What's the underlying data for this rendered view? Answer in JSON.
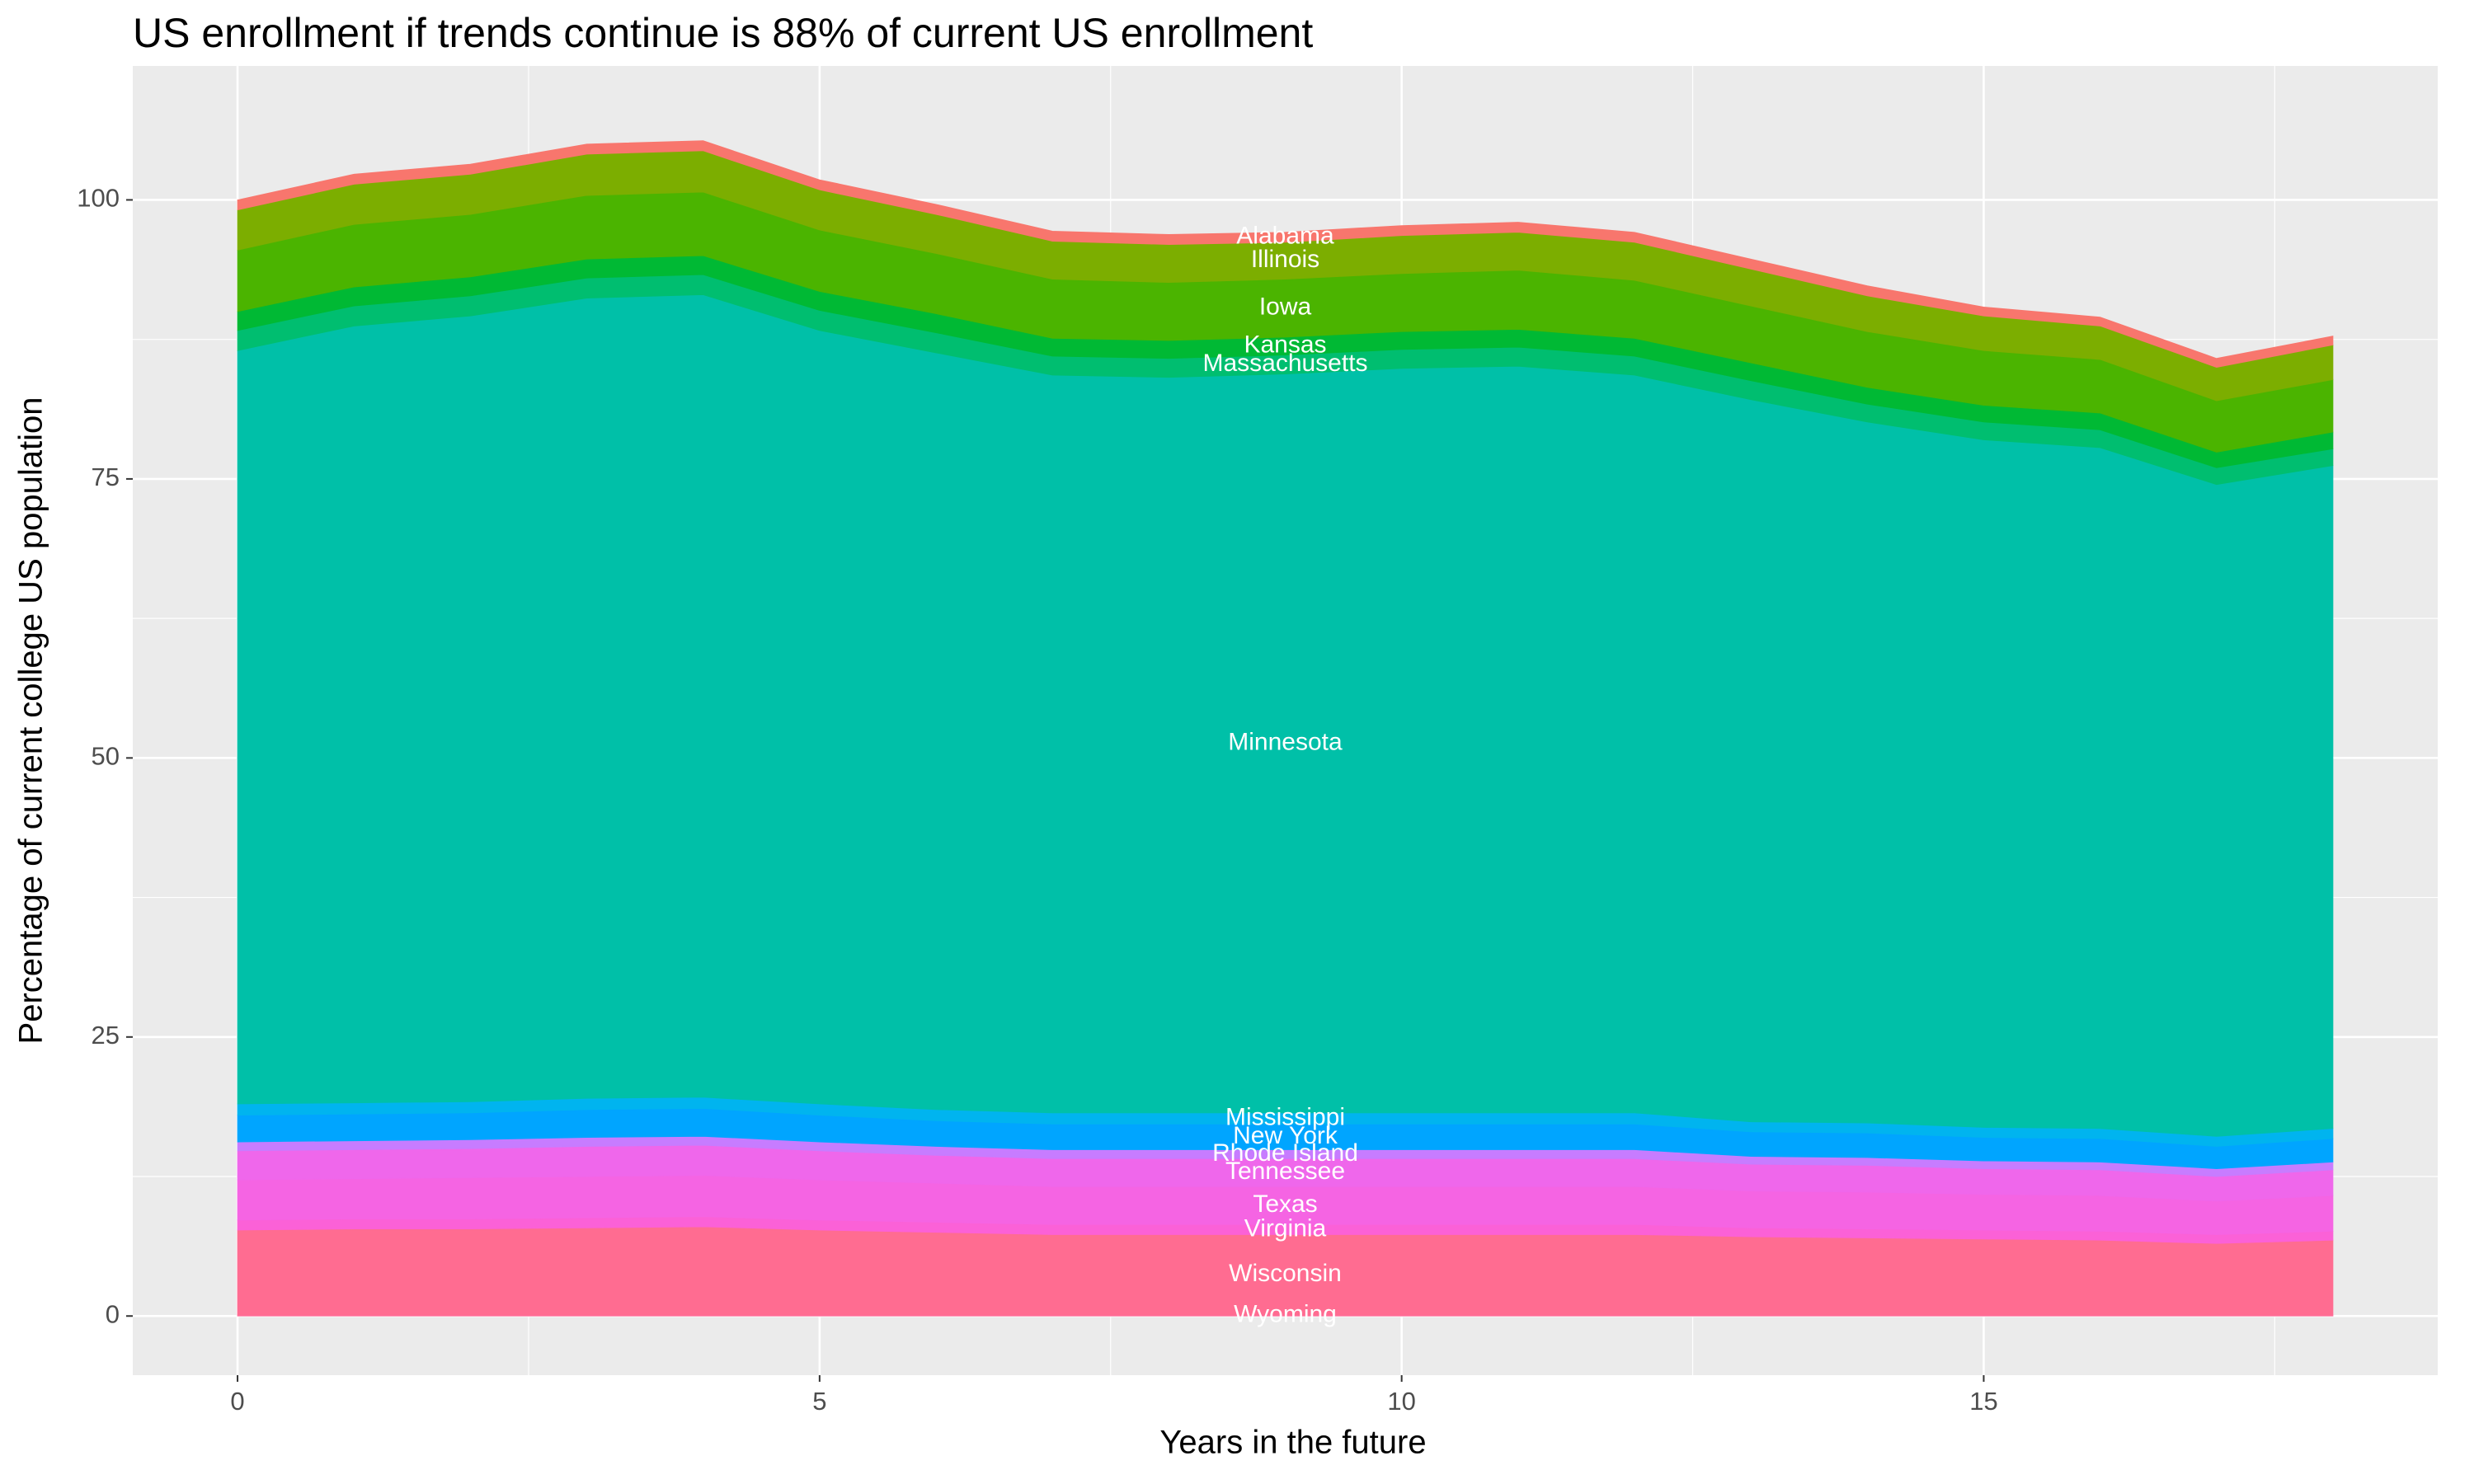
{
  "chart_data": {
    "type": "area",
    "stacked": true,
    "title": "US enrollment if trends continue is 88% of current US enrollment",
    "x_label": "Years in the future",
    "y_label": "Percentage of current college US population",
    "x": [
      0,
      1,
      2,
      3,
      4,
      5,
      6,
      7,
      8,
      9,
      10,
      11,
      12,
      13,
      14,
      15,
      16,
      17,
      18
    ],
    "xlim": [
      -0.9,
      18.9
    ],
    "xticks": [
      0,
      5,
      10,
      15
    ],
    "ylim": [
      -5.3,
      112
    ],
    "yticks": [
      0,
      25,
      50,
      75,
      100
    ],
    "grid": true,
    "label_at_index": 9,
    "series": [
      {
        "name": "Alabama",
        "color": "#F8766D",
        "values": [
          0.9,
          0.9,
          0.9,
          0.9,
          0.9,
          0.9,
          0.9,
          0.9,
          0.9,
          0.9,
          0.9,
          0.9,
          0.9,
          0.9,
          0.9,
          0.8,
          0.8,
          0.8,
          0.8
        ]
      },
      {
        "name": "Illinois",
        "color": "#7CAE00",
        "values": [
          3.6,
          3.6,
          3.6,
          3.7,
          3.7,
          3.6,
          3.5,
          3.4,
          3.4,
          3.3,
          3.4,
          3.4,
          3.4,
          3.3,
          3.2,
          3.1,
          3.0,
          3.0,
          3.1
        ]
      },
      {
        "name": "Iowa",
        "color": "#4BB400",
        "values": [
          5.5,
          5.6,
          5.6,
          5.7,
          5.7,
          5.5,
          5.4,
          5.3,
          5.2,
          5.2,
          5.2,
          5.3,
          5.2,
          5.1,
          5.0,
          4.9,
          4.8,
          4.6,
          4.7
        ]
      },
      {
        "name": "Kansas",
        "color": "#00B934",
        "values": [
          1.7,
          1.7,
          1.7,
          1.7,
          1.7,
          1.7,
          1.7,
          1.6,
          1.6,
          1.6,
          1.6,
          1.6,
          1.6,
          1.6,
          1.5,
          1.5,
          1.5,
          1.4,
          1.5
        ]
      },
      {
        "name": "Massachusetts",
        "color": "#00BE70",
        "values": [
          1.8,
          1.8,
          1.8,
          1.8,
          1.8,
          1.8,
          1.8,
          1.7,
          1.7,
          1.7,
          1.7,
          1.7,
          1.7,
          1.7,
          1.6,
          1.6,
          1.6,
          1.5,
          1.5
        ]
      },
      {
        "name": "Minnesota",
        "color": "#00C0A8",
        "values": [
          67.5,
          69.6,
          70.4,
          71.7,
          71.9,
          69.3,
          67.8,
          66.1,
          65.9,
          66.2,
          66.7,
          66.9,
          66.1,
          64.7,
          62.8,
          61.6,
          61.0,
          58.4,
          59.4
        ]
      },
      {
        "name": "Mississippi",
        "color": "#00B4EF",
        "values": [
          1.0,
          1.0,
          1.0,
          1.0,
          1.0,
          1.0,
          1.0,
          1.0,
          1.0,
          1.0,
          1.0,
          1.0,
          1.0,
          0.9,
          0.9,
          0.9,
          0.9,
          0.9,
          0.9
        ]
      },
      {
        "name": "New York",
        "color": "#00A5FF",
        "values": [
          2.4,
          2.4,
          2.4,
          2.5,
          2.5,
          2.4,
          2.3,
          2.3,
          2.3,
          2.3,
          2.3,
          2.3,
          2.3,
          2.2,
          2.2,
          2.1,
          2.1,
          2.0,
          2.1
        ]
      },
      {
        "name": "Rhode Island",
        "color": "#C77CFF",
        "values": [
          0.8,
          0.8,
          0.8,
          0.8,
          0.8,
          0.8,
          0.8,
          0.8,
          0.8,
          0.8,
          0.8,
          0.8,
          0.8,
          0.7,
          0.7,
          0.7,
          0.7,
          0.7,
          0.7
        ]
      },
      {
        "name": "Tennessee",
        "color": "#EF67EB",
        "values": [
          2.6,
          2.6,
          2.6,
          2.7,
          2.7,
          2.6,
          2.5,
          2.5,
          2.5,
          2.5,
          2.5,
          2.5,
          2.5,
          2.4,
          2.4,
          2.3,
          2.3,
          2.2,
          2.3
        ]
      },
      {
        "name": "Texas",
        "color": "#F564E3",
        "values": [
          3.6,
          3.6,
          3.7,
          3.7,
          3.7,
          3.6,
          3.5,
          3.4,
          3.4,
          3.4,
          3.4,
          3.4,
          3.4,
          3.3,
          3.3,
          3.2,
          3.2,
          3.0,
          3.2
        ]
      },
      {
        "name": "Virginia",
        "color": "#FB61D7",
        "values": [
          0.9,
          0.9,
          0.9,
          0.9,
          0.9,
          0.9,
          0.9,
          0.9,
          0.9,
          0.9,
          0.9,
          0.9,
          0.9,
          0.8,
          0.8,
          0.8,
          0.8,
          0.8,
          0.8
        ]
      },
      {
        "name": "Wisconsin",
        "color": "#FF6C91",
        "values": [
          7.6,
          7.7,
          7.7,
          7.8,
          7.9,
          7.6,
          7.4,
          7.2,
          7.2,
          7.2,
          7.2,
          7.2,
          7.2,
          7.0,
          6.9,
          6.8,
          6.7,
          6.4,
          6.7
        ]
      },
      {
        "name": "Wyoming",
        "color": "#FF6A98",
        "values": [
          0.1,
          0.1,
          0.1,
          0.1,
          0.1,
          0.1,
          0.1,
          0.1,
          0.1,
          0.1,
          0.1,
          0.1,
          0.1,
          0.1,
          0.1,
          0.1,
          0.1,
          0.1,
          0.1
        ]
      }
    ]
  }
}
